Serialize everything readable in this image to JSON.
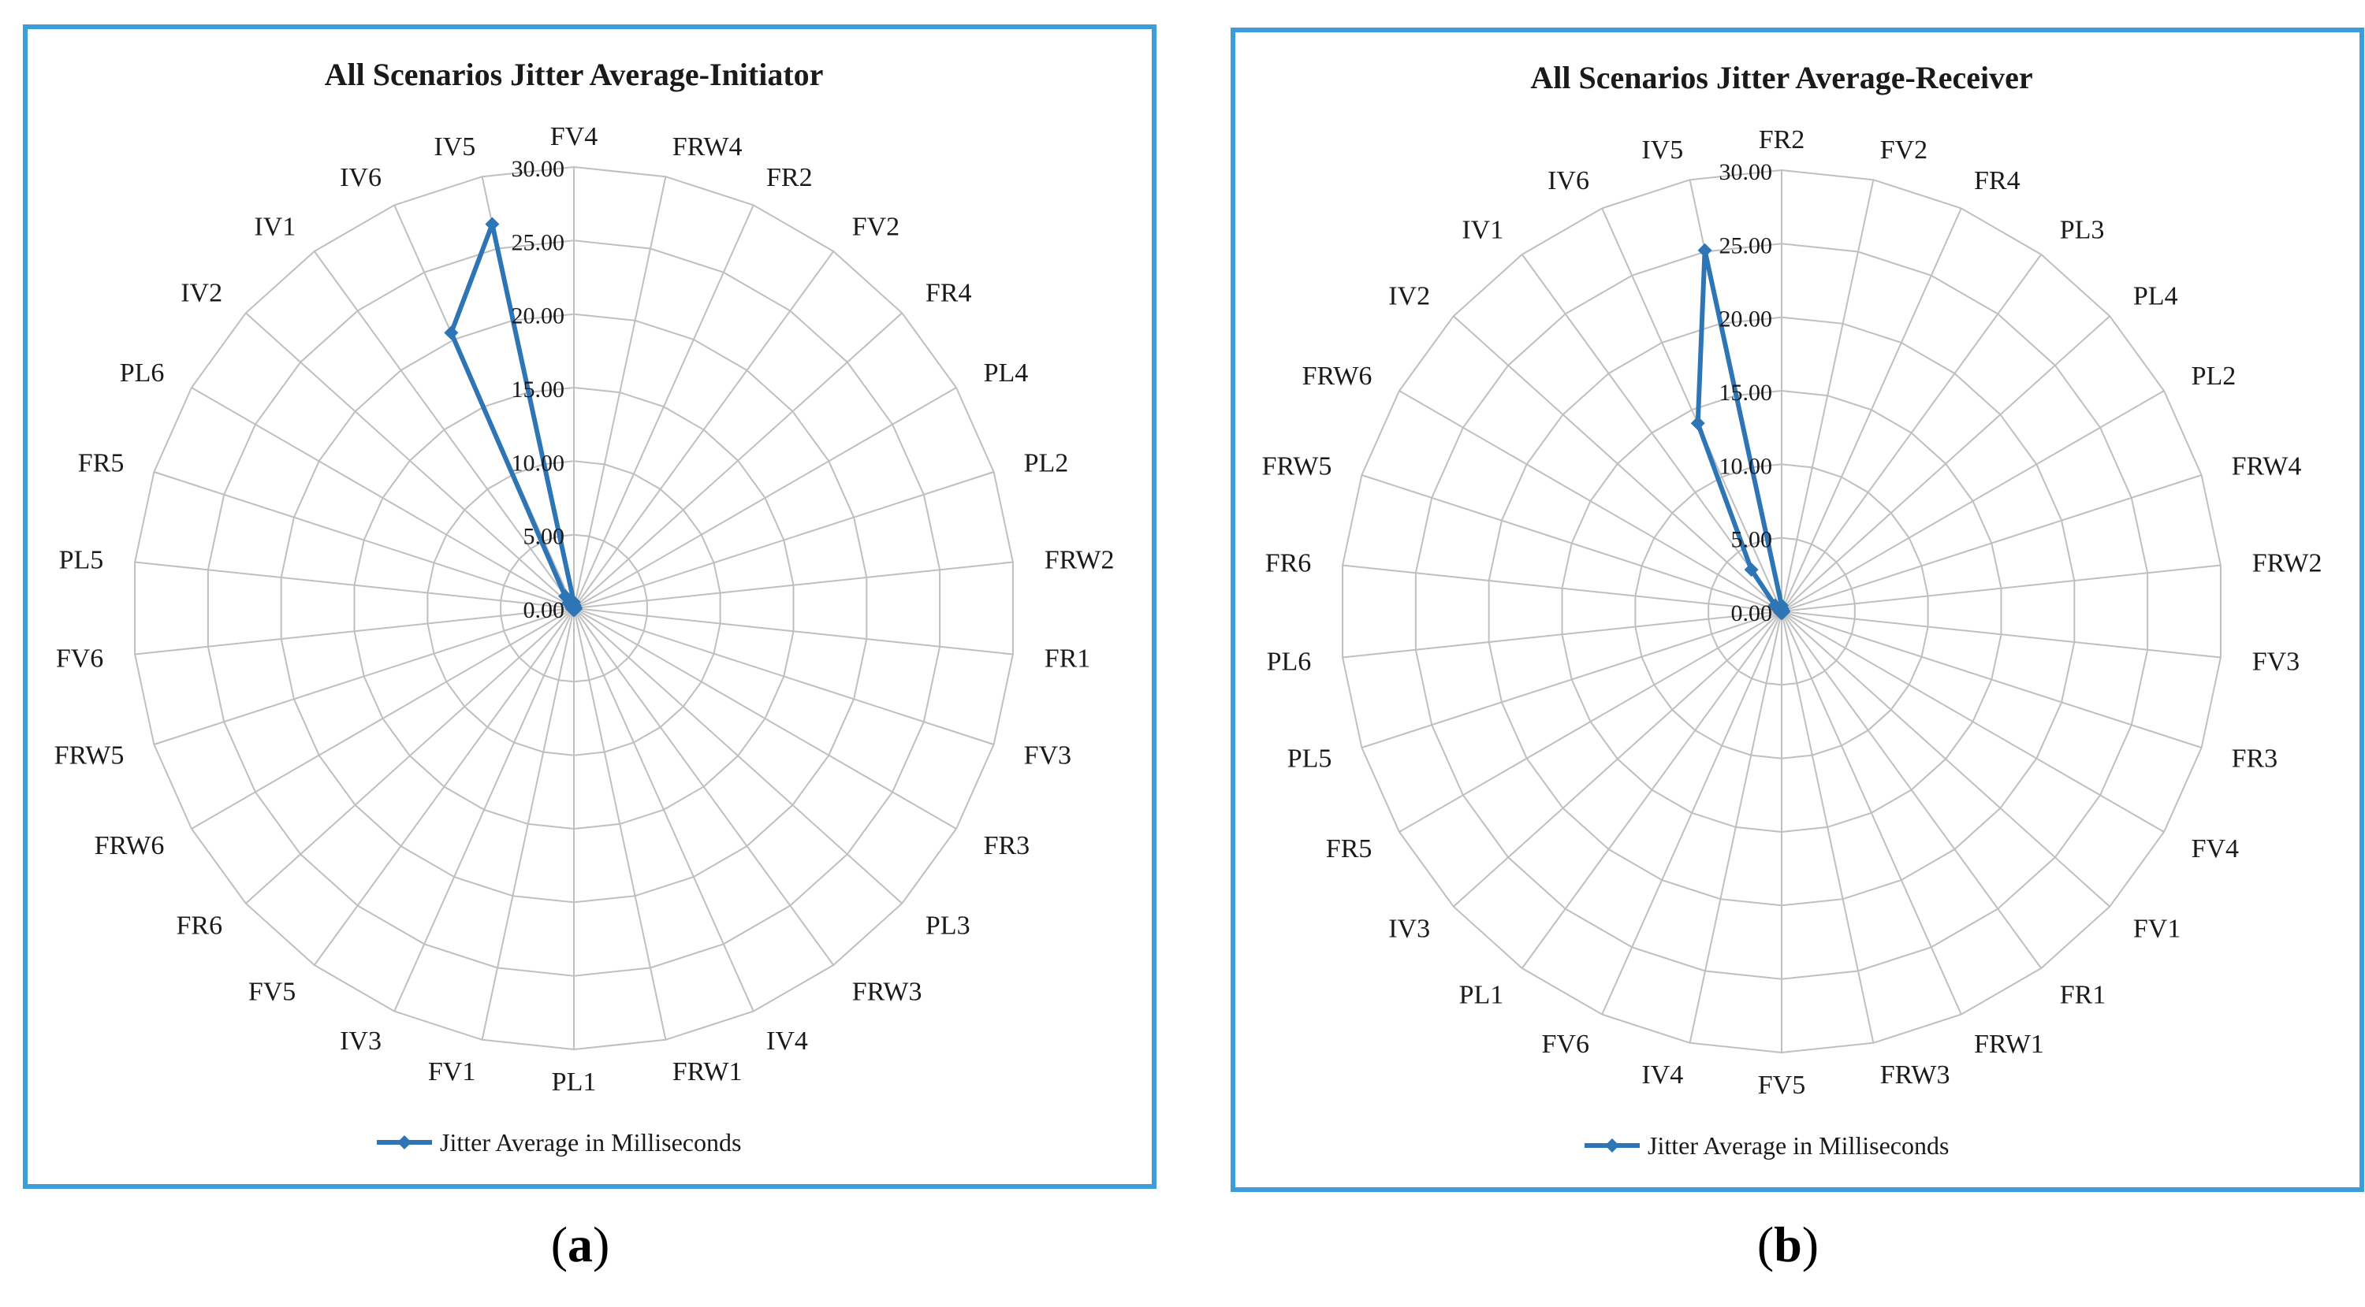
{
  "chart_data": [
    {
      "type": "radar",
      "panel_label": "a",
      "title": "All Scenarios Jitter Average-Initiator",
      "legend": "Jitter Average in Milliseconds",
      "series_color": "#2E75B6",
      "frame_color": "#3B9ED8",
      "grid_color": "#bfbfbf",
      "rlim": [
        0,
        30
      ],
      "rticks": [
        "0.00",
        "5.00",
        "10.00",
        "15.00",
        "20.00",
        "25.00",
        "30.00"
      ],
      "categories": [
        "FV4",
        "FRW4",
        "FR2",
        "FV2",
        "FR4",
        "PL4",
        "PL2",
        "FRW2",
        "FR1",
        "FV3",
        "FR3",
        "PL3",
        "FRW3",
        "IV4",
        "FRW1",
        "PL1",
        "FV1",
        "IV3",
        "FV5",
        "FR6",
        "FRW6",
        "FRW5",
        "FV6",
        "PL5",
        "FR5",
        "PL6",
        "IV2",
        "IV1",
        "IV6",
        "IV5"
      ],
      "values": [
        0.4,
        0.2,
        0.1,
        0.1,
        0.1,
        0.1,
        0.1,
        0.1,
        0.1,
        0.1,
        0.1,
        0.1,
        0.1,
        0.1,
        0.1,
        0.1,
        0.1,
        0.1,
        0.1,
        0.1,
        0.1,
        0.1,
        0.1,
        0.1,
        0.1,
        0.2,
        0.5,
        1.0,
        20.5,
        26.7
      ]
    },
    {
      "type": "radar",
      "panel_label": "b",
      "title": "All Scenarios Jitter Average-Receiver",
      "legend": "Jitter Average in Milliseconds",
      "series_color": "#2E75B6",
      "frame_color": "#3B9ED8",
      "grid_color": "#bfbfbf",
      "rlim": [
        0,
        30
      ],
      "rticks": [
        "0.00",
        "5.00",
        "10.00",
        "15.00",
        "20.00",
        "25.00",
        "30.00"
      ],
      "categories": [
        "FR2",
        "FV2",
        "FR4",
        "PL3",
        "PL4",
        "PL2",
        "FRW4",
        "FRW2",
        "FV3",
        "FR3",
        "FV4",
        "FV1",
        "FR1",
        "FRW1",
        "FRW3",
        "FV5",
        "IV4",
        "FV6",
        "PL1",
        "IV3",
        "FR5",
        "PL5",
        "PL6",
        "FR6",
        "FRW5",
        "FRW6",
        "IV2",
        "IV1",
        "IV6",
        "IV5"
      ],
      "values": [
        0.4,
        0.2,
        0.1,
        0.1,
        0.1,
        0.1,
        0.1,
        0.1,
        0.1,
        0.1,
        0.1,
        0.1,
        0.1,
        0.1,
        0.1,
        0.1,
        0.1,
        0.1,
        0.1,
        0.1,
        0.1,
        0.1,
        0.1,
        0.1,
        0.1,
        0.3,
        0.6,
        3.5,
        14.0,
        25.1
      ]
    }
  ]
}
